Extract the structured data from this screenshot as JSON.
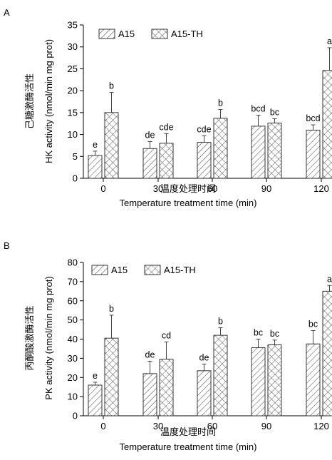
{
  "chart_data": [
    {
      "panel": "A",
      "type": "bar",
      "categories": [
        "0",
        "30",
        "60",
        "90",
        "120"
      ],
      "series": [
        {
          "name": "A15",
          "values": [
            5.2,
            6.8,
            8.2,
            11.9,
            11.0
          ],
          "errors": [
            1.0,
            1.6,
            1.5,
            2.5,
            1.2
          ]
        },
        {
          "name": "A15-TH",
          "values": [
            15.0,
            8.0,
            13.7,
            12.6,
            24.6
          ],
          "errors": [
            4.6,
            2.2,
            2.0,
            1.0,
            5.2
          ]
        }
      ],
      "significance": [
        [
          "e",
          "de",
          "cde",
          "bcd",
          "bcd"
        ],
        [
          "b",
          "cde",
          "b",
          "bc",
          "a"
        ]
      ],
      "title": "",
      "xlabel_cn": "温度处理时间",
      "xlabel": "Temperature treatment time (min)",
      "ylabel_cn": "己糖激酶活性",
      "ylabel": "HK activity (nmol/min mg prot)",
      "ylim": [
        0,
        35
      ],
      "yticks": [
        "0",
        "5",
        "10",
        "15",
        "20",
        "25",
        "30",
        "35"
      ],
      "legend_position": "top-left",
      "grid": false
    },
    {
      "panel": "B",
      "type": "bar",
      "categories": [
        "0",
        "30",
        "60",
        "90",
        "120"
      ],
      "series": [
        {
          "name": "A15",
          "values": [
            16.0,
            22.0,
            23.5,
            35.5,
            37.5
          ],
          "errors": [
            1.5,
            6.5,
            3.5,
            4.5,
            7.0
          ]
        },
        {
          "name": "A15-TH",
          "values": [
            40.5,
            29.5,
            42.0,
            37.0,
            65.0
          ],
          "errors": [
            12.0,
            9.0,
            4.0,
            2.5,
            3.0
          ]
        }
      ],
      "significance": [
        [
          "e",
          "de",
          "de",
          "bc",
          "bc"
        ],
        [
          "b",
          "cd",
          "b",
          "bc",
          "a"
        ]
      ],
      "title": "",
      "xlabel_cn": "温度处理时间",
      "xlabel": "Temperature treatment time (min)",
      "ylabel_cn": "丙酮酸激酶活性",
      "ylabel": "PK activity (nmol/min mg prot)",
      "ylim": [
        0,
        80
      ],
      "yticks": [
        "0",
        "10",
        "20",
        "30",
        "40",
        "50",
        "60",
        "70",
        "80"
      ],
      "legend_position": "top-left",
      "grid": false
    }
  ]
}
